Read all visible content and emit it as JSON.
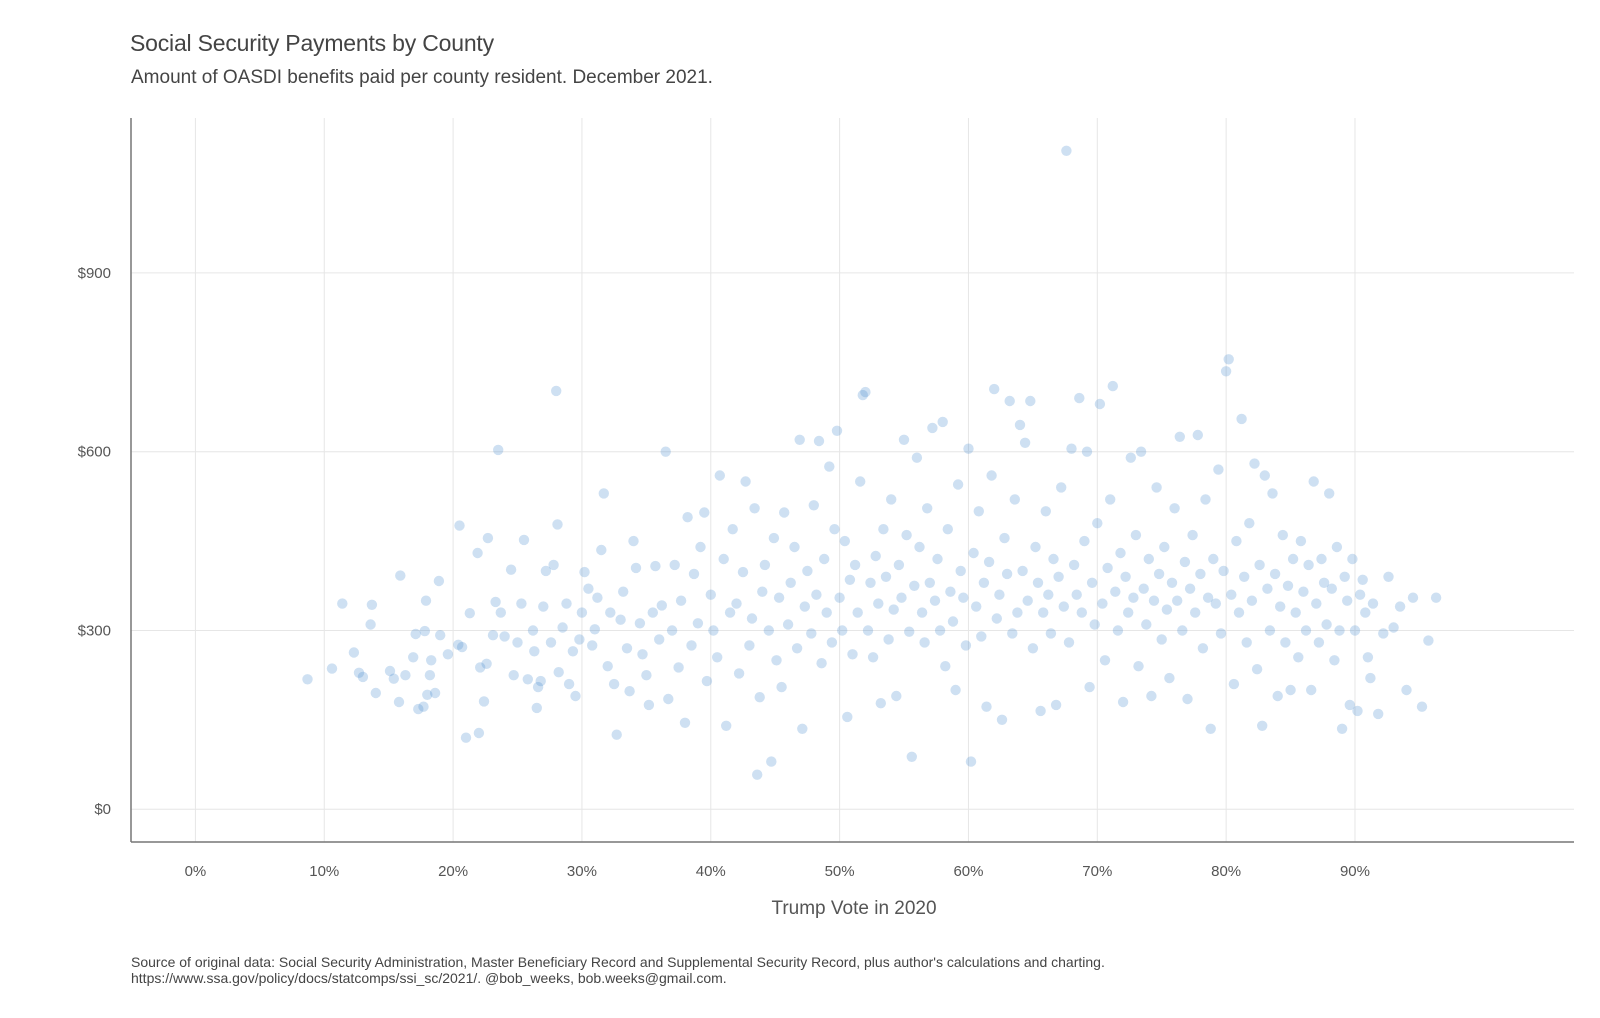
{
  "chart_data": {
    "type": "scatter",
    "title": "Social Security Payments by County",
    "subtitle": "Amount of OASDI benefits paid per county resident. December 2021.",
    "xlabel": "Trump Vote in 2020",
    "ylabel": "",
    "xlim": [
      -0.05,
      1.07
    ],
    "ylim": [
      -55,
      1160
    ],
    "x_ticks": [
      {
        "value": 0.0,
        "label": "0%"
      },
      {
        "value": 0.1,
        "label": "10%"
      },
      {
        "value": 0.2,
        "label": "20%"
      },
      {
        "value": 0.3,
        "label": "30%"
      },
      {
        "value": 0.4,
        "label": "40%"
      },
      {
        "value": 0.5,
        "label": "50%"
      },
      {
        "value": 0.6,
        "label": "60%"
      },
      {
        "value": 0.7,
        "label": "70%"
      },
      {
        "value": 0.8,
        "label": "80%"
      },
      {
        "value": 0.9,
        "label": "90%"
      }
    ],
    "y_ticks": [
      {
        "value": 0,
        "label": "$0"
      },
      {
        "value": 300,
        "label": "$300"
      },
      {
        "value": 600,
        "label": "$600"
      },
      {
        "value": 900,
        "label": "$900"
      }
    ],
    "grid": true,
    "legend": "none",
    "point_color": "#4f8fcf",
    "point_opacity": 0.28,
    "points": [
      [
        0.087,
        218
      ],
      [
        0.106,
        236
      ],
      [
        0.114,
        345
      ],
      [
        0.123,
        263
      ],
      [
        0.127,
        229
      ],
      [
        0.13,
        222
      ],
      [
        0.136,
        310
      ],
      [
        0.137,
        343
      ],
      [
        0.14,
        195
      ],
      [
        0.151,
        232
      ],
      [
        0.154,
        219
      ],
      [
        0.158,
        180
      ],
      [
        0.159,
        392
      ],
      [
        0.163,
        225
      ],
      [
        0.169,
        255
      ],
      [
        0.171,
        294
      ],
      [
        0.173,
        168
      ],
      [
        0.177,
        172
      ],
      [
        0.178,
        299
      ],
      [
        0.179,
        350
      ],
      [
        0.18,
        192
      ],
      [
        0.182,
        225
      ],
      [
        0.183,
        250
      ],
      [
        0.186,
        195
      ],
      [
        0.189,
        383
      ],
      [
        0.19,
        292
      ],
      [
        0.196,
        260
      ],
      [
        0.204,
        276
      ],
      [
        0.205,
        476
      ],
      [
        0.207,
        272
      ],
      [
        0.21,
        120
      ],
      [
        0.213,
        329
      ],
      [
        0.219,
        430
      ],
      [
        0.22,
        128
      ],
      [
        0.221,
        238
      ],
      [
        0.224,
        181
      ],
      [
        0.226,
        244
      ],
      [
        0.227,
        455
      ],
      [
        0.231,
        292
      ],
      [
        0.233,
        348
      ],
      [
        0.235,
        603
      ],
      [
        0.237,
        330
      ],
      [
        0.24,
        290
      ],
      [
        0.245,
        402
      ],
      [
        0.247,
        225
      ],
      [
        0.25,
        280
      ],
      [
        0.253,
        345
      ],
      [
        0.255,
        452
      ],
      [
        0.258,
        218
      ],
      [
        0.262,
        300
      ],
      [
        0.263,
        265
      ],
      [
        0.265,
        170
      ],
      [
        0.266,
        205
      ],
      [
        0.268,
        215
      ],
      [
        0.27,
        340
      ],
      [
        0.272,
        400
      ],
      [
        0.276,
        280
      ],
      [
        0.278,
        410
      ],
      [
        0.28,
        702
      ],
      [
        0.281,
        478
      ],
      [
        0.282,
        230
      ],
      [
        0.285,
        305
      ],
      [
        0.288,
        345
      ],
      [
        0.29,
        210
      ],
      [
        0.293,
        265
      ],
      [
        0.295,
        190
      ],
      [
        0.298,
        285
      ],
      [
        0.3,
        330
      ],
      [
        0.302,
        398
      ],
      [
        0.305,
        370
      ],
      [
        0.308,
        275
      ],
      [
        0.31,
        302
      ],
      [
        0.312,
        355
      ],
      [
        0.315,
        435
      ],
      [
        0.317,
        530
      ],
      [
        0.32,
        240
      ],
      [
        0.322,
        330
      ],
      [
        0.325,
        210
      ],
      [
        0.327,
        125
      ],
      [
        0.33,
        318
      ],
      [
        0.332,
        365
      ],
      [
        0.335,
        270
      ],
      [
        0.337,
        198
      ],
      [
        0.34,
        450
      ],
      [
        0.342,
        405
      ],
      [
        0.345,
        312
      ],
      [
        0.347,
        260
      ],
      [
        0.35,
        225
      ],
      [
        0.352,
        175
      ],
      [
        0.355,
        330
      ],
      [
        0.357,
        408
      ],
      [
        0.36,
        285
      ],
      [
        0.362,
        342
      ],
      [
        0.365,
        600
      ],
      [
        0.367,
        185
      ],
      [
        0.37,
        300
      ],
      [
        0.372,
        410
      ],
      [
        0.375,
        238
      ],
      [
        0.377,
        350
      ],
      [
        0.38,
        145
      ],
      [
        0.382,
        490
      ],
      [
        0.385,
        275
      ],
      [
        0.387,
        395
      ],
      [
        0.39,
        312
      ],
      [
        0.392,
        440
      ],
      [
        0.395,
        498
      ],
      [
        0.397,
        215
      ],
      [
        0.4,
        360
      ],
      [
        0.402,
        300
      ],
      [
        0.405,
        255
      ],
      [
        0.407,
        560
      ],
      [
        0.41,
        420
      ],
      [
        0.412,
        140
      ],
      [
        0.415,
        330
      ],
      [
        0.417,
        470
      ],
      [
        0.42,
        345
      ],
      [
        0.422,
        228
      ],
      [
        0.425,
        398
      ],
      [
        0.427,
        550
      ],
      [
        0.43,
        275
      ],
      [
        0.432,
        320
      ],
      [
        0.434,
        505
      ],
      [
        0.436,
        58
      ],
      [
        0.438,
        188
      ],
      [
        0.44,
        365
      ],
      [
        0.442,
        410
      ],
      [
        0.445,
        300
      ],
      [
        0.447,
        80
      ],
      [
        0.449,
        455
      ],
      [
        0.451,
        250
      ],
      [
        0.453,
        355
      ],
      [
        0.455,
        205
      ],
      [
        0.457,
        498
      ],
      [
        0.46,
        310
      ],
      [
        0.462,
        380
      ],
      [
        0.465,
        440
      ],
      [
        0.467,
        270
      ],
      [
        0.469,
        620
      ],
      [
        0.471,
        135
      ],
      [
        0.473,
        340
      ],
      [
        0.475,
        400
      ],
      [
        0.478,
        295
      ],
      [
        0.48,
        510
      ],
      [
        0.482,
        360
      ],
      [
        0.484,
        618
      ],
      [
        0.486,
        245
      ],
      [
        0.488,
        420
      ],
      [
        0.49,
        330
      ],
      [
        0.492,
        575
      ],
      [
        0.494,
        280
      ],
      [
        0.496,
        470
      ],
      [
        0.498,
        635
      ],
      [
        0.5,
        355
      ],
      [
        0.502,
        300
      ],
      [
        0.504,
        450
      ],
      [
        0.506,
        155
      ],
      [
        0.508,
        385
      ],
      [
        0.51,
        260
      ],
      [
        0.512,
        410
      ],
      [
        0.514,
        330
      ],
      [
        0.516,
        550
      ],
      [
        0.518,
        695
      ],
      [
        0.52,
        700
      ],
      [
        0.522,
        300
      ],
      [
        0.524,
        380
      ],
      [
        0.526,
        255
      ],
      [
        0.528,
        425
      ],
      [
        0.53,
        345
      ],
      [
        0.532,
        178
      ],
      [
        0.534,
        470
      ],
      [
        0.536,
        390
      ],
      [
        0.538,
        285
      ],
      [
        0.54,
        520
      ],
      [
        0.542,
        335
      ],
      [
        0.544,
        190
      ],
      [
        0.546,
        410
      ],
      [
        0.548,
        355
      ],
      [
        0.55,
        620
      ],
      [
        0.552,
        460
      ],
      [
        0.554,
        298
      ],
      [
        0.556,
        88
      ],
      [
        0.558,
        375
      ],
      [
        0.56,
        590
      ],
      [
        0.562,
        440
      ],
      [
        0.564,
        330
      ],
      [
        0.566,
        280
      ],
      [
        0.568,
        505
      ],
      [
        0.57,
        380
      ],
      [
        0.572,
        640
      ],
      [
        0.574,
        350
      ],
      [
        0.576,
        420
      ],
      [
        0.578,
        300
      ],
      [
        0.58,
        650
      ],
      [
        0.582,
        240
      ],
      [
        0.584,
        470
      ],
      [
        0.586,
        365
      ],
      [
        0.588,
        315
      ],
      [
        0.59,
        200
      ],
      [
        0.592,
        545
      ],
      [
        0.594,
        400
      ],
      [
        0.596,
        355
      ],
      [
        0.598,
        275
      ],
      [
        0.6,
        605
      ],
      [
        0.602,
        80
      ],
      [
        0.604,
        430
      ],
      [
        0.606,
        340
      ],
      [
        0.608,
        500
      ],
      [
        0.61,
        290
      ],
      [
        0.612,
        380
      ],
      [
        0.614,
        172
      ],
      [
        0.616,
        415
      ],
      [
        0.618,
        560
      ],
      [
        0.62,
        705
      ],
      [
        0.622,
        320
      ],
      [
        0.624,
        360
      ],
      [
        0.626,
        150
      ],
      [
        0.628,
        455
      ],
      [
        0.63,
        395
      ],
      [
        0.632,
        685
      ],
      [
        0.634,
        295
      ],
      [
        0.636,
        520
      ],
      [
        0.638,
        330
      ],
      [
        0.64,
        645
      ],
      [
        0.642,
        400
      ],
      [
        0.644,
        615
      ],
      [
        0.646,
        350
      ],
      [
        0.648,
        685
      ],
      [
        0.65,
        270
      ],
      [
        0.652,
        440
      ],
      [
        0.654,
        380
      ],
      [
        0.656,
        165
      ],
      [
        0.658,
        330
      ],
      [
        0.66,
        500
      ],
      [
        0.662,
        360
      ],
      [
        0.664,
        295
      ],
      [
        0.666,
        420
      ],
      [
        0.668,
        175
      ],
      [
        0.67,
        390
      ],
      [
        0.672,
        540
      ],
      [
        0.674,
        340
      ],
      [
        0.676,
        1105
      ],
      [
        0.678,
        280
      ],
      [
        0.68,
        605
      ],
      [
        0.682,
        410
      ],
      [
        0.684,
        360
      ],
      [
        0.686,
        690
      ],
      [
        0.688,
        330
      ],
      [
        0.69,
        450
      ],
      [
        0.692,
        600
      ],
      [
        0.694,
        205
      ],
      [
        0.696,
        380
      ],
      [
        0.698,
        310
      ],
      [
        0.7,
        480
      ],
      [
        0.702,
        680
      ],
      [
        0.704,
        345
      ],
      [
        0.706,
        250
      ],
      [
        0.708,
        405
      ],
      [
        0.71,
        520
      ],
      [
        0.712,
        710
      ],
      [
        0.714,
        365
      ],
      [
        0.716,
        300
      ],
      [
        0.718,
        430
      ],
      [
        0.72,
        180
      ],
      [
        0.722,
        390
      ],
      [
        0.724,
        330
      ],
      [
        0.726,
        590
      ],
      [
        0.728,
        355
      ],
      [
        0.73,
        460
      ],
      [
        0.732,
        240
      ],
      [
        0.734,
        600
      ],
      [
        0.736,
        370
      ],
      [
        0.738,
        310
      ],
      [
        0.74,
        420
      ],
      [
        0.742,
        190
      ],
      [
        0.744,
        350
      ],
      [
        0.746,
        540
      ],
      [
        0.748,
        395
      ],
      [
        0.75,
        285
      ],
      [
        0.752,
        440
      ],
      [
        0.754,
        335
      ],
      [
        0.756,
        220
      ],
      [
        0.758,
        380
      ],
      [
        0.76,
        505
      ],
      [
        0.762,
        350
      ],
      [
        0.764,
        625
      ],
      [
        0.766,
        300
      ],
      [
        0.768,
        415
      ],
      [
        0.77,
        185
      ],
      [
        0.772,
        370
      ],
      [
        0.774,
        460
      ],
      [
        0.776,
        330
      ],
      [
        0.778,
        628
      ],
      [
        0.78,
        395
      ],
      [
        0.782,
        270
      ],
      [
        0.784,
        520
      ],
      [
        0.786,
        355
      ],
      [
        0.788,
        135
      ],
      [
        0.79,
        420
      ],
      [
        0.792,
        345
      ],
      [
        0.794,
        570
      ],
      [
        0.796,
        295
      ],
      [
        0.798,
        400
      ],
      [
        0.8,
        735
      ],
      [
        0.802,
        755
      ],
      [
        0.804,
        360
      ],
      [
        0.806,
        210
      ],
      [
        0.808,
        450
      ],
      [
        0.81,
        330
      ],
      [
        0.812,
        655
      ],
      [
        0.814,
        390
      ],
      [
        0.816,
        280
      ],
      [
        0.818,
        480
      ],
      [
        0.82,
        350
      ],
      [
        0.822,
        580
      ],
      [
        0.824,
        235
      ],
      [
        0.826,
        410
      ],
      [
        0.828,
        140
      ],
      [
        0.83,
        560
      ],
      [
        0.832,
        370
      ],
      [
        0.834,
        300
      ],
      [
        0.836,
        530
      ],
      [
        0.838,
        395
      ],
      [
        0.84,
        190
      ],
      [
        0.842,
        340
      ],
      [
        0.844,
        460
      ],
      [
        0.846,
        280
      ],
      [
        0.848,
        375
      ],
      [
        0.85,
        200
      ],
      [
        0.852,
        420
      ],
      [
        0.854,
        330
      ],
      [
        0.856,
        255
      ],
      [
        0.858,
        450
      ],
      [
        0.86,
        365
      ],
      [
        0.862,
        300
      ],
      [
        0.864,
        410
      ],
      [
        0.866,
        200
      ],
      [
        0.868,
        550
      ],
      [
        0.87,
        345
      ],
      [
        0.872,
        280
      ],
      [
        0.874,
        420
      ],
      [
        0.876,
        380
      ],
      [
        0.878,
        310
      ],
      [
        0.88,
        530
      ],
      [
        0.882,
        370
      ],
      [
        0.884,
        250
      ],
      [
        0.886,
        440
      ],
      [
        0.888,
        300
      ],
      [
        0.89,
        135
      ],
      [
        0.892,
        390
      ],
      [
        0.894,
        350
      ],
      [
        0.896,
        175
      ],
      [
        0.898,
        420
      ],
      [
        0.9,
        300
      ],
      [
        0.902,
        165
      ],
      [
        0.904,
        360
      ],
      [
        0.906,
        385
      ],
      [
        0.908,
        330
      ],
      [
        0.91,
        255
      ],
      [
        0.912,
        220
      ],
      [
        0.914,
        345
      ],
      [
        0.918,
        160
      ],
      [
        0.922,
        295
      ],
      [
        0.926,
        390
      ],
      [
        0.93,
        305
      ],
      [
        0.935,
        340
      ],
      [
        0.94,
        200
      ],
      [
        0.945,
        355
      ],
      [
        0.952,
        172
      ],
      [
        0.957,
        283
      ],
      [
        0.963,
        355
      ]
    ]
  },
  "source": {
    "line1": "Source of original data: Social Security Administration, Master Beneficiary Record and Supplemental Security Record, plus author's calculations and charting.",
    "line2": "https://www.ssa.gov/policy/docs/statcomps/ssi_sc/2021/. @bob_weeks, bob.weeks@gmail.com."
  }
}
